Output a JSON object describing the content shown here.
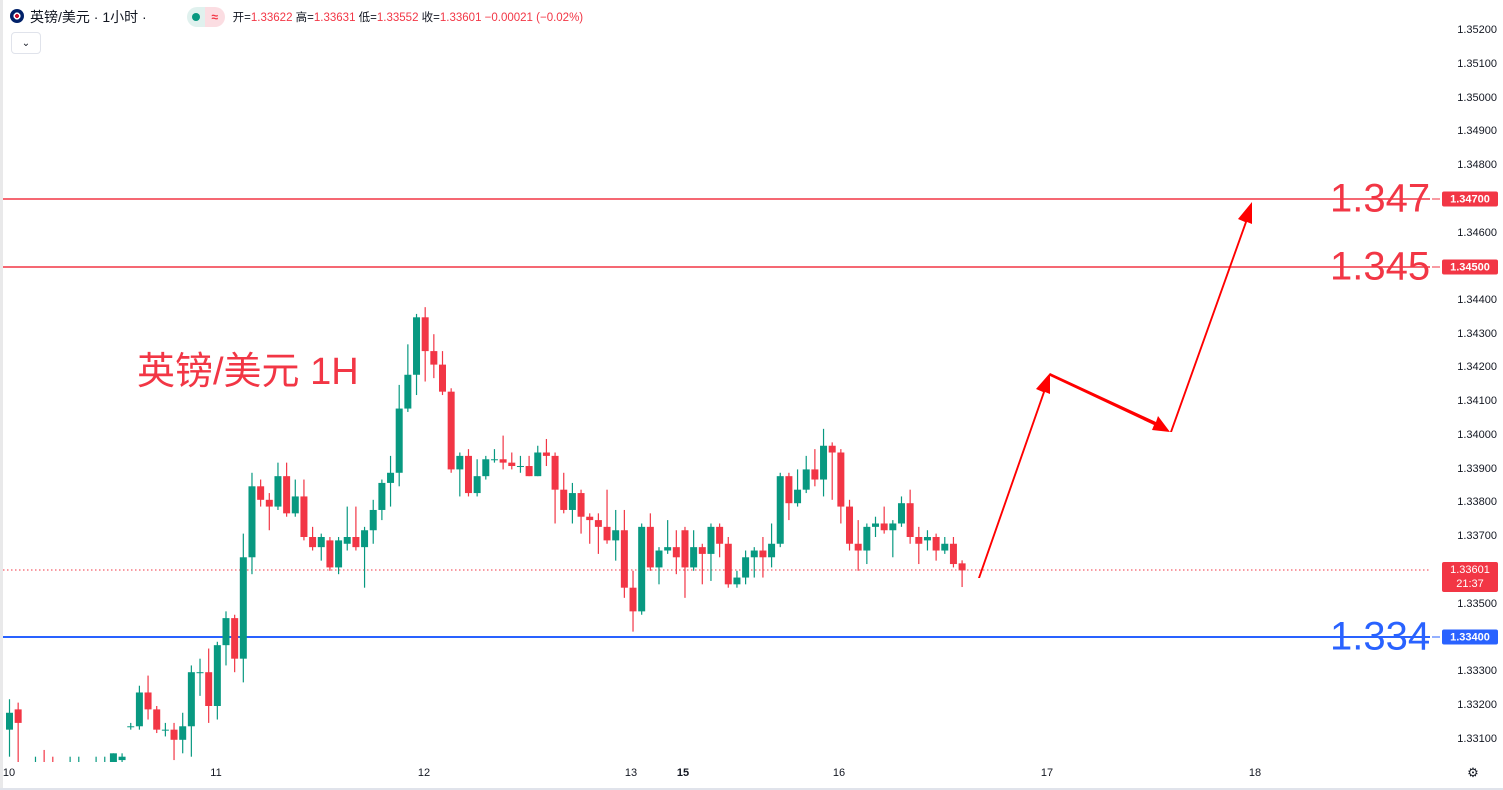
{
  "header": {
    "symbol_title": "英镑/美元 · 1小时 ·",
    "approx_symbol": "≈",
    "open_label": "开=",
    "open": "1.33622",
    "high_label": "高=",
    "high": "1.33631",
    "low_label": "低=",
    "low": "1.33552",
    "close_label": "收=",
    "close": "1.33601",
    "change": "−0.00021 (−0.02%)",
    "dropdown_icon": "⌄"
  },
  "annotations": {
    "title": "英镑/美元 1H",
    "level_1347": "1.347",
    "level_1345": "1.345",
    "level_1334": "1.334"
  },
  "price_axis": {
    "ticks": [
      "1.35200",
      "1.35100",
      "1.35000",
      "1.34900",
      "1.34800",
      "1.34600",
      "1.34400",
      "1.34300",
      "1.34200",
      "1.34100",
      "1.34000",
      "1.33900",
      "1.33800",
      "1.33700",
      "1.33500",
      "1.33300",
      "1.33200",
      "1.33100"
    ],
    "badge_1347": "1.34700",
    "badge_1345": "1.34500",
    "badge_1334": "1.33400",
    "current_price": "1.33601",
    "countdown": "21:37"
  },
  "time_axis": {
    "labels": [
      "10",
      "11",
      "12",
      "13",
      "15",
      "16",
      "17",
      "18"
    ]
  },
  "settings_icon": "⚙",
  "colors": {
    "up": "#089981",
    "down": "#f23645",
    "resistance": "#f23645",
    "support": "#2962ff",
    "arrow": "#ff0000"
  },
  "chart_data": {
    "type": "candlestick",
    "title": "英镑/美元 1H",
    "ylim": [
      1.3304,
      1.3527
    ],
    "x_tick_labels": [
      "10",
      "11",
      "12",
      "13",
      "15",
      "16",
      "17",
      "18"
    ],
    "horizontal_levels": [
      1.347,
      1.345,
      1.334
    ],
    "current_price": 1.33601,
    "projected_path": [
      1.336,
      1.342,
      1.3402,
      1.347
    ],
    "candles": [
      [
        1.3313,
        1.3322,
        1.3305,
        1.3318
      ],
      [
        1.3319,
        1.3321,
        1.3303,
        1.3315
      ],
      [
        1.3302,
        1.3303,
        1.33,
        1.3301
      ],
      [
        1.3301,
        1.3305,
        1.3299,
        1.3302
      ],
      [
        1.3302,
        1.3307,
        1.3299,
        1.33
      ],
      [
        1.33,
        1.3305,
        1.3298,
        1.3299
      ],
      [
        1.3299,
        1.3301,
        1.3297,
        1.33
      ],
      [
        1.33,
        1.3305,
        1.3298,
        1.3301
      ],
      [
        1.3301,
        1.3305,
        1.3299,
        1.3302
      ],
      [
        1.3302,
        1.3303,
        1.3299,
        1.3301
      ],
      [
        1.3301,
        1.3305,
        1.3299,
        1.3302
      ],
      [
        1.3302,
        1.3305,
        1.33,
        1.3303
      ],
      [
        1.3302,
        1.3306,
        1.33,
        1.3306
      ],
      [
        1.3304,
        1.3306,
        1.3302,
        1.3305
      ],
      [
        1.3314,
        1.3315,
        1.3313,
        1.3314
      ],
      [
        1.3314,
        1.3326,
        1.3313,
        1.3324
      ],
      [
        1.3324,
        1.3329,
        1.3316,
        1.3319
      ],
      [
        1.3319,
        1.332,
        1.3312,
        1.3313
      ],
      [
        1.3313,
        1.3315,
        1.3311,
        1.3313
      ],
      [
        1.3313,
        1.3315,
        1.3304,
        1.331
      ],
      [
        1.331,
        1.3318,
        1.3306,
        1.3314
      ],
      [
        1.3314,
        1.3332,
        1.3305,
        1.333
      ],
      [
        1.333,
        1.3334,
        1.3323,
        1.333
      ],
      [
        1.333,
        1.3337,
        1.3315,
        1.332
      ],
      [
        1.332,
        1.3339,
        1.3316,
        1.3338
      ],
      [
        1.3338,
        1.3348,
        1.3332,
        1.3346
      ],
      [
        1.3346,
        1.3347,
        1.333,
        1.3334
      ],
      [
        1.3334,
        1.3371,
        1.3327,
        1.3364
      ],
      [
        1.3364,
        1.3389,
        1.3359,
        1.3385
      ],
      [
        1.3385,
        1.3387,
        1.3379,
        1.3381
      ],
      [
        1.3381,
        1.3383,
        1.3372,
        1.3379
      ],
      [
        1.3379,
        1.3392,
        1.3378,
        1.3388
      ],
      [
        1.3388,
        1.3392,
        1.3376,
        1.3377
      ],
      [
        1.3377,
        1.3387,
        1.3376,
        1.3382
      ],
      [
        1.3382,
        1.3387,
        1.3369,
        1.337
      ],
      [
        1.337,
        1.3373,
        1.3366,
        1.3367
      ],
      [
        1.3367,
        1.3371,
        1.3363,
        1.337
      ],
      [
        1.3369,
        1.337,
        1.336,
        1.3361
      ],
      [
        1.3361,
        1.337,
        1.3359,
        1.3369
      ],
      [
        1.3368,
        1.3379,
        1.3366,
        1.337
      ],
      [
        1.337,
        1.3379,
        1.3366,
        1.3367
      ],
      [
        1.3367,
        1.3373,
        1.3355,
        1.3372
      ],
      [
        1.3372,
        1.3381,
        1.3368,
        1.3378
      ],
      [
        1.3378,
        1.3387,
        1.3375,
        1.3386
      ],
      [
        1.3386,
        1.3394,
        1.3379,
        1.3389
      ],
      [
        1.3389,
        1.3415,
        1.3385,
        1.3408
      ],
      [
        1.3408,
        1.3427,
        1.3407,
        1.3418
      ],
      [
        1.3418,
        1.3436,
        1.3412,
        1.3435
      ],
      [
        1.3435,
        1.3438,
        1.3416,
        1.3425
      ],
      [
        1.3425,
        1.343,
        1.3417,
        1.3421
      ],
      [
        1.3421,
        1.3425,
        1.3412,
        1.3413
      ],
      [
        1.3413,
        1.3414,
        1.3389,
        1.339
      ],
      [
        1.339,
        1.3395,
        1.3382,
        1.3394
      ],
      [
        1.3394,
        1.3396,
        1.3382,
        1.3383
      ],
      [
        1.3383,
        1.3393,
        1.3382,
        1.3388
      ],
      [
        1.3388,
        1.3394,
        1.3387,
        1.3393
      ],
      [
        1.3393,
        1.3396,
        1.3392,
        1.3393
      ],
      [
        1.3393,
        1.34,
        1.339,
        1.3392
      ],
      [
        1.3392,
        1.3395,
        1.339,
        1.3391
      ],
      [
        1.3391,
        1.3394,
        1.3389,
        1.3391
      ],
      [
        1.3391,
        1.3394,
        1.3388,
        1.3388
      ],
      [
        1.3388,
        1.3397,
        1.3388,
        1.3395
      ],
      [
        1.3395,
        1.3399,
        1.3391,
        1.3394
      ],
      [
        1.3394,
        1.3395,
        1.3374,
        1.3384
      ],
      [
        1.3384,
        1.3389,
        1.3377,
        1.3378
      ],
      [
        1.3378,
        1.3386,
        1.3374,
        1.3383
      ],
      [
        1.3383,
        1.3384,
        1.3371,
        1.3376
      ],
      [
        1.3376,
        1.3377,
        1.3368,
        1.3375
      ],
      [
        1.3375,
        1.3377,
        1.3365,
        1.3373
      ],
      [
        1.3373,
        1.3384,
        1.3368,
        1.3369
      ],
      [
        1.3369,
        1.3378,
        1.3363,
        1.3372
      ],
      [
        1.3372,
        1.3378,
        1.3352,
        1.3355
      ],
      [
        1.3355,
        1.336,
        1.3342,
        1.3348
      ],
      [
        1.3348,
        1.3374,
        1.3347,
        1.3373
      ],
      [
        1.3373,
        1.3377,
        1.336,
        1.3361
      ],
      [
        1.3361,
        1.3367,
        1.3356,
        1.3366
      ],
      [
        1.3366,
        1.3375,
        1.3365,
        1.3367
      ],
      [
        1.3367,
        1.3372,
        1.3359,
        1.3364
      ],
      [
        1.3372,
        1.3373,
        1.3352,
        1.3361
      ],
      [
        1.3361,
        1.3372,
        1.336,
        1.3367
      ],
      [
        1.3367,
        1.3368,
        1.3356,
        1.3365
      ],
      [
        1.3365,
        1.3374,
        1.3357,
        1.3373
      ],
      [
        1.3373,
        1.3374,
        1.3364,
        1.3368
      ],
      [
        1.3368,
        1.337,
        1.3355,
        1.3356
      ],
      [
        1.3356,
        1.336,
        1.3355,
        1.3358
      ],
      [
        1.3358,
        1.3366,
        1.3356,
        1.3364
      ],
      [
        1.3364,
        1.3367,
        1.3358,
        1.3366
      ],
      [
        1.3366,
        1.337,
        1.3358,
        1.3364
      ],
      [
        1.3364,
        1.3374,
        1.3361,
        1.3368
      ],
      [
        1.3368,
        1.3389,
        1.3367,
        1.3388
      ],
      [
        1.3388,
        1.3389,
        1.3375,
        1.338
      ],
      [
        1.338,
        1.339,
        1.3379,
        1.3384
      ],
      [
        1.3384,
        1.3394,
        1.3383,
        1.339
      ],
      [
        1.339,
        1.3396,
        1.3385,
        1.3387
      ],
      [
        1.3387,
        1.3402,
        1.3382,
        1.3397
      ],
      [
        1.3397,
        1.3398,
        1.3381,
        1.3395
      ],
      [
        1.3395,
        1.3396,
        1.3374,
        1.3379
      ],
      [
        1.3379,
        1.3381,
        1.3366,
        1.3368
      ],
      [
        1.3368,
        1.3375,
        1.336,
        1.3366
      ],
      [
        1.3366,
        1.3374,
        1.3362,
        1.3373
      ],
      [
        1.3373,
        1.3376,
        1.337,
        1.3374
      ],
      [
        1.3374,
        1.3379,
        1.3371,
        1.3372
      ],
      [
        1.3372,
        1.3375,
        1.3364,
        1.3374
      ],
      [
        1.3374,
        1.3382,
        1.3373,
        1.338
      ],
      [
        1.338,
        1.3384,
        1.3368,
        1.337
      ],
      [
        1.337,
        1.3373,
        1.3362,
        1.3368
      ],
      [
        1.3369,
        1.3372,
        1.3366,
        1.337
      ],
      [
        1.337,
        1.3371,
        1.3363,
        1.3366
      ],
      [
        1.3366,
        1.337,
        1.3365,
        1.3368
      ],
      [
        1.3368,
        1.337,
        1.3361,
        1.3362
      ],
      [
        1.33622,
        1.33631,
        1.33552,
        1.33601
      ]
    ]
  }
}
